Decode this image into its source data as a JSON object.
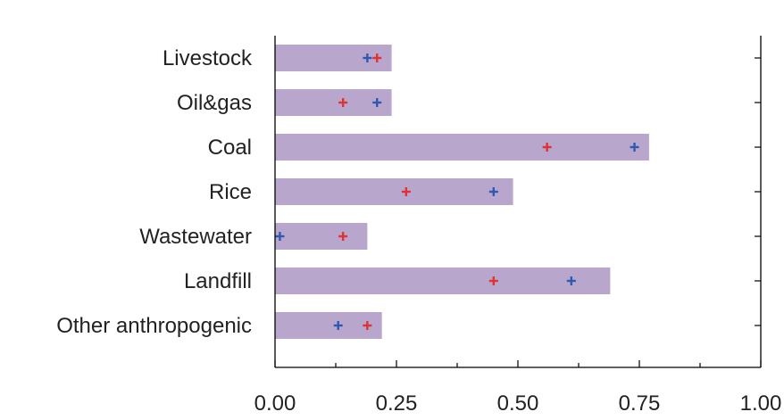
{
  "chart_data": {
    "type": "bar",
    "orientation": "horizontal",
    "categories": [
      "Livestock",
      "Oil&gas",
      "Coal",
      "Rice",
      "Wastewater",
      "Landfill",
      "Other anthropogenic"
    ],
    "series": [
      {
        "values": [
          0.24,
          0.24,
          0.77,
          0.49,
          0.19,
          0.69,
          0.22
        ],
        "color": "#b9a6cc",
        "kind": "bar"
      },
      {
        "values": [
          0.21,
          0.14,
          0.56,
          0.27,
          0.14,
          0.45,
          0.19
        ],
        "color": "#dd3333",
        "kind": "plus-marker"
      },
      {
        "values": [
          0.19,
          0.21,
          0.74,
          0.45,
          0.01,
          0.61,
          0.13
        ],
        "color": "#2f59b0",
        "kind": "plus-marker"
      }
    ],
    "x_ticks": [
      "0.00",
      "0.25",
      "0.50",
      "0.75",
      "1.00"
    ],
    "xlim": [
      0,
      1
    ],
    "title": "",
    "xlabel": "",
    "ylabel": "",
    "grid": false,
    "colors": {
      "axis": "#000000",
      "text": "#222222"
    }
  }
}
